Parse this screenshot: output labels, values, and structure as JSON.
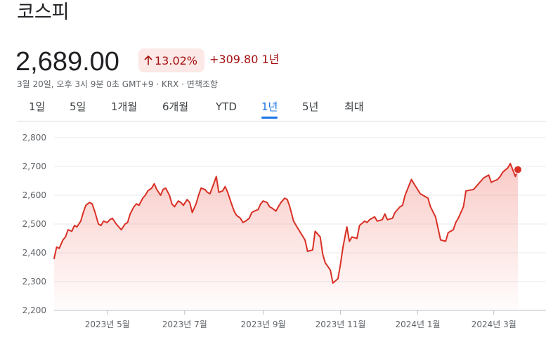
{
  "header": {
    "title": "코스피",
    "price": "2,689.00",
    "percent_change": "13.02%",
    "change": "+309.80 1년",
    "meta": "3월 20일, 오후 3시 9분 0초 GMT+9 · KRX · 면책조항"
  },
  "tabs": [
    {
      "label": "1일",
      "active": false
    },
    {
      "label": "5일",
      "active": false
    },
    {
      "label": "1개월",
      "active": false
    },
    {
      "label": "6개월",
      "active": false
    },
    {
      "label": "YTD",
      "active": false
    },
    {
      "label": "1년",
      "active": true
    },
    {
      "label": "5년",
      "active": false
    },
    {
      "label": "최대",
      "active": false
    }
  ],
  "colors": {
    "line": "#d93025",
    "fill": "#f28b82",
    "accent": "#1a73e8",
    "negative_text": "#a50e0e",
    "badge_bg": "#fce8e6"
  },
  "chart_data": {
    "type": "area",
    "ylim": [
      2200,
      2800
    ],
    "yticks": [
      "2,800",
      "2,700",
      "2,600",
      "2,500",
      "2,400",
      "2,300",
      "2,200"
    ],
    "ytick_values": [
      2800,
      2700,
      2600,
      2500,
      2400,
      2300,
      2200
    ],
    "xlim": [
      "2023-03-20",
      "2024-03-20"
    ],
    "xticks": [
      {
        "label": "2023년 5월",
        "date": "2023-05-01"
      },
      {
        "label": "2023년 7월",
        "date": "2023-07-01"
      },
      {
        "label": "2023년 9월",
        "date": "2023-09-01"
      },
      {
        "label": "2023년 11월",
        "date": "2023-11-01"
      },
      {
        "label": "2024년 1월",
        "date": "2024-01-01"
      },
      {
        "label": "2024년 3월",
        "date": "2024-03-01"
      }
    ],
    "grid": true,
    "series": [
      {
        "x": [
          "2023-03-20",
          "2023-03-22",
          "2023-03-24",
          "2023-03-27",
          "2023-03-29",
          "2023-03-31",
          "2023-04-03",
          "2023-04-05",
          "2023-04-07",
          "2023-04-10",
          "2023-04-12",
          "2023-04-14",
          "2023-04-17",
          "2023-04-19",
          "2023-04-21",
          "2023-04-24",
          "2023-04-26",
          "2023-04-28",
          "2023-05-01",
          "2023-05-03",
          "2023-05-05",
          "2023-05-08",
          "2023-05-10",
          "2023-05-12",
          "2023-05-15",
          "2023-05-17",
          "2023-05-19",
          "2023-05-22",
          "2023-05-24",
          "2023-05-26",
          "2023-05-29",
          "2023-05-31",
          "2023-06-02",
          "2023-06-05",
          "2023-06-07",
          "2023-06-09",
          "2023-06-12",
          "2023-06-14",
          "2023-06-16",
          "2023-06-19",
          "2023-06-21",
          "2023-06-23",
          "2023-06-26",
          "2023-06-28",
          "2023-06-30",
          "2023-07-03",
          "2023-07-05",
          "2023-07-07",
          "2023-07-10",
          "2023-07-12",
          "2023-07-14",
          "2023-07-17",
          "2023-07-19",
          "2023-07-21",
          "2023-07-24",
          "2023-07-26",
          "2023-07-28",
          "2023-07-31",
          "2023-08-02",
          "2023-08-04",
          "2023-08-07",
          "2023-08-09",
          "2023-08-11",
          "2023-08-14",
          "2023-08-16",
          "2023-08-18",
          "2023-08-21",
          "2023-08-23",
          "2023-08-25",
          "2023-08-28",
          "2023-08-30",
          "2023-09-01",
          "2023-09-04",
          "2023-09-06",
          "2023-09-08",
          "2023-09-11",
          "2023-09-13",
          "2023-09-15",
          "2023-09-18",
          "2023-09-20",
          "2023-09-22",
          "2023-09-25",
          "2023-09-27",
          "2023-10-04",
          "2023-10-06",
          "2023-10-10",
          "2023-10-12",
          "2023-10-16",
          "2023-10-18",
          "2023-10-20",
          "2023-10-24",
          "2023-10-26",
          "2023-10-30",
          "2023-11-01",
          "2023-11-03",
          "2023-11-06",
          "2023-11-08",
          "2023-11-10",
          "2023-11-14",
          "2023-11-16",
          "2023-11-20",
          "2023-11-22",
          "2023-11-24",
          "2023-11-28",
          "2023-11-30",
          "2023-12-04",
          "2023-12-06",
          "2023-12-08",
          "2023-12-12",
          "2023-12-14",
          "2023-12-18",
          "2023-12-20",
          "2023-12-22",
          "2023-12-27",
          "2023-12-29",
          "2024-01-03",
          "2024-01-05",
          "2024-01-09",
          "2024-01-11",
          "2024-01-15",
          "2024-01-17",
          "2024-01-19",
          "2024-01-23",
          "2024-01-25",
          "2024-01-29",
          "2024-01-31",
          "2024-02-02",
          "2024-02-06",
          "2024-02-08",
          "2024-02-14",
          "2024-02-16",
          "2024-02-20",
          "2024-02-22",
          "2024-02-26",
          "2024-02-28",
          "2024-03-04",
          "2024-03-06",
          "2024-03-08",
          "2024-03-12",
          "2024-03-14",
          "2024-03-18",
          "2024-03-20"
        ],
        "values": [
          2380,
          2420,
          2415,
          2445,
          2455,
          2480,
          2475,
          2495,
          2490,
          2510,
          2540,
          2565,
          2575,
          2570,
          2545,
          2500,
          2495,
          2510,
          2505,
          2515,
          2520,
          2500,
          2490,
          2480,
          2500,
          2505,
          2535,
          2560,
          2570,
          2565,
          2590,
          2600,
          2615,
          2625,
          2640,
          2620,
          2600,
          2620,
          2625,
          2600,
          2570,
          2560,
          2580,
          2575,
          2565,
          2585,
          2575,
          2540,
          2570,
          2600,
          2625,
          2620,
          2610,
          2605,
          2640,
          2665,
          2610,
          2615,
          2630,
          2610,
          2570,
          2545,
          2530,
          2520,
          2505,
          2510,
          2520,
          2540,
          2545,
          2550,
          2570,
          2580,
          2575,
          2560,
          2555,
          2545,
          2560,
          2575,
          2590,
          2585,
          2560,
          2510,
          2495,
          2445,
          2405,
          2410,
          2475,
          2455,
          2395,
          2365,
          2340,
          2295,
          2310,
          2360,
          2420,
          2490,
          2440,
          2455,
          2450,
          2495,
          2510,
          2505,
          2515,
          2525,
          2510,
          2515,
          2535,
          2515,
          2520,
          2540,
          2560,
          2565,
          2600,
          2655,
          2640,
          2605,
          2600,
          2590,
          2560,
          2525,
          2485,
          2445,
          2440,
          2470,
          2480,
          2505,
          2520,
          2560,
          2615,
          2620,
          2630,
          2650,
          2660,
          2670,
          2645,
          2655,
          2665,
          2680,
          2695,
          2710,
          2665,
          2689
        ]
      }
    ]
  }
}
